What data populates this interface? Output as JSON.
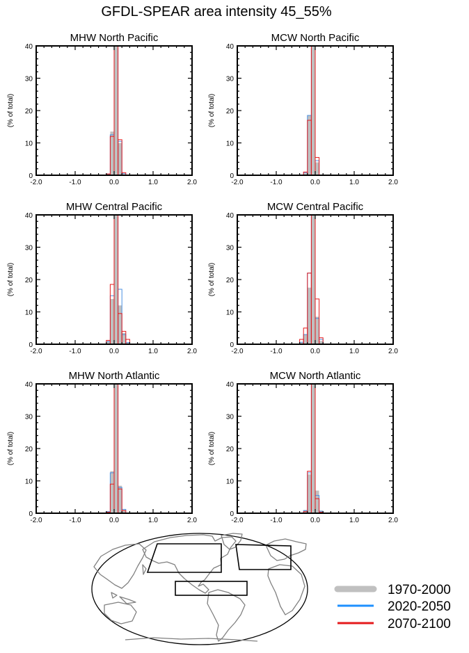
{
  "title": "GFDL-SPEAR area intensity 45_55%",
  "legend": [
    {
      "label": "1970-2000",
      "color": "#c0c0c0"
    },
    {
      "label": "2020-2050",
      "color": "#1e90ff"
    },
    {
      "label": "2070-2100",
      "color": "#e41a1c"
    }
  ],
  "colors": {
    "hist_fill": "#c0c0c0",
    "mid": "#4a90e2",
    "late": "#e41a1c"
  },
  "chart_data": [
    {
      "type": "bar",
      "title": "MHW North Pacific",
      "ylabel": "(% of total)",
      "xlim": [
        -2,
        2
      ],
      "ylim": [
        0,
        40
      ],
      "xticks": [
        "-2.0",
        "-1.0",
        "0.0",
        "1.0",
        "2.0"
      ],
      "yticks": [
        "0",
        "10",
        "20",
        "30",
        "40"
      ],
      "bin_width": 0.1,
      "bin_centers": [
        -0.15,
        -0.05,
        0.05,
        0.15,
        0.25
      ],
      "series": [
        {
          "name": "1970-2000",
          "values": [
            0.5,
            13.5,
            40,
            10,
            0.3
          ]
        },
        {
          "name": "2020-2050",
          "values": [
            0.4,
            12.5,
            40,
            10.5,
            0.5
          ]
        },
        {
          "name": "2070-2100",
          "values": [
            0.4,
            12,
            40,
            11,
            0.8
          ]
        }
      ]
    },
    {
      "type": "bar",
      "title": "MCW North Pacific",
      "ylabel": "(% of total)",
      "xlim": [
        -2,
        2
      ],
      "ylim": [
        0,
        40
      ],
      "xticks": [
        "-2.0",
        "-1.0",
        "0.0",
        "1.0",
        "2.0"
      ],
      "yticks": [
        "0",
        "10",
        "20",
        "30",
        "40"
      ],
      "bin_width": 0.1,
      "bin_centers": [
        -0.25,
        -0.15,
        -0.05,
        0.05
      ],
      "series": [
        {
          "name": "1970-2000",
          "values": [
            0.6,
            18.5,
            40,
            4
          ]
        },
        {
          "name": "2020-2050",
          "values": [
            0.8,
            18.5,
            40,
            4.5
          ]
        },
        {
          "name": "2070-2100",
          "values": [
            1,
            17,
            40,
            5.5
          ]
        }
      ]
    },
    {
      "type": "bar",
      "title": "MHW Central Pacific",
      "ylabel": "(% of total)",
      "xlim": [
        -2,
        2
      ],
      "ylim": [
        0,
        40
      ],
      "xticks": [
        "-2.0",
        "-1.0",
        "0.0",
        "1.0",
        "2.0"
      ],
      "yticks": [
        "0",
        "10",
        "20",
        "30",
        "40"
      ],
      "bin_width": 0.1,
      "bin_centers": [
        -0.15,
        -0.05,
        0.05,
        0.15,
        0.25,
        0.35
      ],
      "series": [
        {
          "name": "1970-2000",
          "values": [
            1,
            14,
            40,
            12,
            3.5,
            0.5
          ]
        },
        {
          "name": "2020-2050",
          "values": [
            0.8,
            15,
            40,
            17,
            3,
            0.5
          ]
        },
        {
          "name": "2070-2100",
          "values": [
            1.2,
            18.5,
            40,
            9.5,
            4,
            1.5
          ]
        }
      ]
    },
    {
      "type": "bar",
      "title": "MCW Central Pacific",
      "ylabel": "(% of total)",
      "xlim": [
        -2,
        2
      ],
      "ylim": [
        0,
        40
      ],
      "xticks": [
        "-2.0",
        "-1.0",
        "0.0",
        "1.0",
        "2.0"
      ],
      "yticks": [
        "0",
        "10",
        "20",
        "30",
        "40"
      ],
      "bin_width": 0.1,
      "bin_centers": [
        -0.35,
        -0.25,
        -0.15,
        -0.05,
        0.05,
        0.15
      ],
      "series": [
        {
          "name": "1970-2000",
          "values": [
            0.5,
            3,
            17.5,
            40,
            8.5,
            1
          ]
        },
        {
          "name": "2020-2050",
          "values": [
            0.6,
            3,
            22,
            40,
            8,
            1.5
          ]
        },
        {
          "name": "2070-2100",
          "values": [
            1.5,
            5,
            22,
            40,
            14,
            2
          ]
        }
      ]
    },
    {
      "type": "bar",
      "title": "MHW North Atlantic",
      "ylabel": "(% of total)",
      "xlim": [
        -2,
        2
      ],
      "ylim": [
        0,
        40
      ],
      "xticks": [
        "-2.0",
        "-1.0",
        "0.0",
        "1.0",
        "2.0"
      ],
      "yticks": [
        "0",
        "10",
        "20",
        "30",
        "40"
      ],
      "bin_width": 0.1,
      "bin_centers": [
        -0.15,
        -0.05,
        0.05,
        0.15,
        0.25
      ],
      "series": [
        {
          "name": "1970-2000",
          "values": [
            0.5,
            13,
            40,
            8.5,
            1
          ]
        },
        {
          "name": "2020-2050",
          "values": [
            0.5,
            12.5,
            40,
            8,
            1.2
          ]
        },
        {
          "name": "2070-2100",
          "values": [
            0.3,
            9,
            40,
            7.5,
            0.8
          ]
        }
      ]
    },
    {
      "type": "bar",
      "title": "MCW North Atlantic",
      "ylabel": "(% of total)",
      "xlim": [
        -2,
        2
      ],
      "ylim": [
        0,
        40
      ],
      "xticks": [
        "-2.0",
        "-1.0",
        "0.0",
        "1.0",
        "2.0"
      ],
      "yticks": [
        "0",
        "10",
        "20",
        "30",
        "40"
      ],
      "bin_width": 0.1,
      "bin_centers": [
        -0.25,
        -0.15,
        -0.05,
        0.05,
        0.15
      ],
      "series": [
        {
          "name": "1970-2000",
          "values": [
            1,
            12,
            40,
            7,
            0.8
          ]
        },
        {
          "name": "2020-2050",
          "values": [
            0.8,
            12.5,
            40,
            5.5,
            0.6
          ]
        },
        {
          "name": "2070-2100",
          "values": [
            0.5,
            13,
            40,
            4.5,
            0.3
          ]
        }
      ]
    }
  ],
  "map": {
    "name": "world-map-regions",
    "regions": [
      "North Pacific",
      "North Atlantic",
      "Central Pacific"
    ]
  }
}
